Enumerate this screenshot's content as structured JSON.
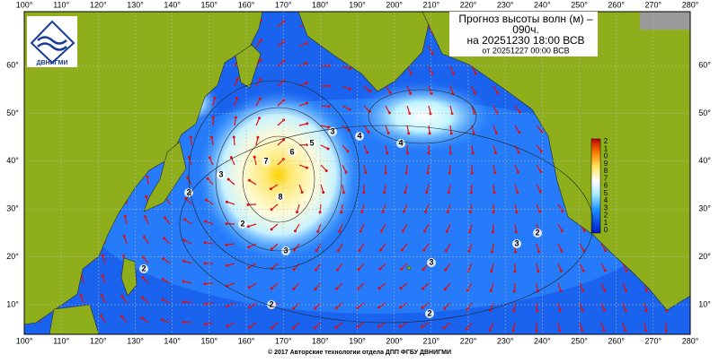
{
  "header": {
    "title_line1": "Прогноз высоты волн (м) –",
    "title_line2": "090ч.",
    "valid_time": "на 20251230 18:00 ВСВ",
    "issued": "от 20251227 00:00 ВСВ"
  },
  "logo": {
    "text": "ДВНИГМИ"
  },
  "map": {
    "lon_labels": [
      "100°",
      "110°",
      "120°",
      "130°",
      "140°",
      "150°",
      "160°",
      "170°",
      "180°",
      "190°",
      "200°",
      "210°",
      "220°",
      "230°",
      "240°",
      "250°",
      "260°",
      "270°",
      "280°"
    ],
    "lat_labels": [
      "60°",
      "50°",
      "40°",
      "30°",
      "20°",
      "10°"
    ],
    "colorbar_labels": [
      "2",
      "1",
      "0",
      "9",
      "8",
      "7",
      "6",
      "5",
      "4",
      "3",
      "2",
      "1",
      "0"
    ],
    "contour_labels": [
      "2",
      "3",
      "4",
      "5",
      "6",
      "7",
      "8",
      "3",
      "4",
      "3",
      "2",
      "2",
      "3",
      "2",
      "2",
      "3",
      "2"
    ]
  },
  "footer": {
    "copyright": "© 2017 Авторские технологии отдела ДПП ФГБУ ДВНИГМИ"
  }
}
